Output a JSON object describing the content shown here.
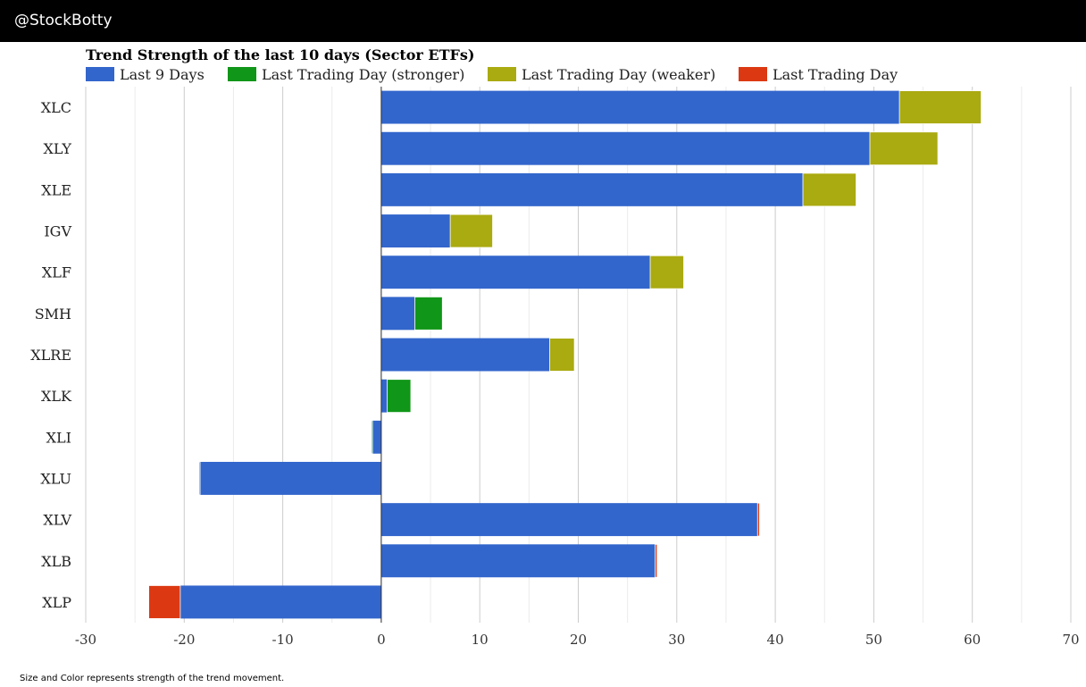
{
  "header": {
    "handle": "@StockBotty"
  },
  "footnote": "Size and Color represents strength of the trend movement.",
  "chart_data": {
    "type": "bar",
    "orientation": "horizontal",
    "stacked": true,
    "title": "Trend Strength of the last 10 days (Sector ETFs)",
    "xlabel": "",
    "ylabel": "",
    "xlim": [
      -30,
      70
    ],
    "xticks": [
      -30,
      -20,
      -10,
      0,
      10,
      20,
      30,
      40,
      50,
      60,
      70
    ],
    "grid": true,
    "legend_position": "top-left",
    "colors": {
      "last9": "#3366cc",
      "stronger": "#109618",
      "weaker": "#aaaa11",
      "last": "#dc3912"
    },
    "legend": [
      {
        "key": "last9",
        "label": "Last 9 Days"
      },
      {
        "key": "stronger",
        "label": "Last Trading Day (stronger)"
      },
      {
        "key": "weaker",
        "label": "Last Trading Day (weaker)"
      },
      {
        "key": "last",
        "label": "Last Trading Day"
      }
    ],
    "categories": [
      "XLC",
      "XLY",
      "XLE",
      "IGV",
      "XLF",
      "SMH",
      "XLRE",
      "XLK",
      "XLI",
      "XLU",
      "XLV",
      "XLB",
      "XLP"
    ],
    "series": [
      {
        "name": "Last 9 Days",
        "key": "last9",
        "values": [
          52.6,
          49.6,
          42.8,
          7.0,
          27.3,
          3.4,
          17.1,
          0.6,
          -1.0,
          -18.5,
          38.4,
          28.0,
          -20.4
        ]
      },
      {
        "name": "Last Trading Day",
        "key": "lastday",
        "values": [
          8.3,
          6.9,
          5.4,
          4.3,
          3.4,
          2.8,
          2.5,
          2.4,
          0.1,
          0.1,
          -0.2,
          -0.2,
          -3.2
        ]
      }
    ],
    "lastday_kind": [
      "weaker",
      "weaker",
      "weaker",
      "weaker",
      "weaker",
      "stronger",
      "weaker",
      "stronger",
      "stronger",
      "stronger",
      "last",
      "last",
      "last"
    ]
  }
}
